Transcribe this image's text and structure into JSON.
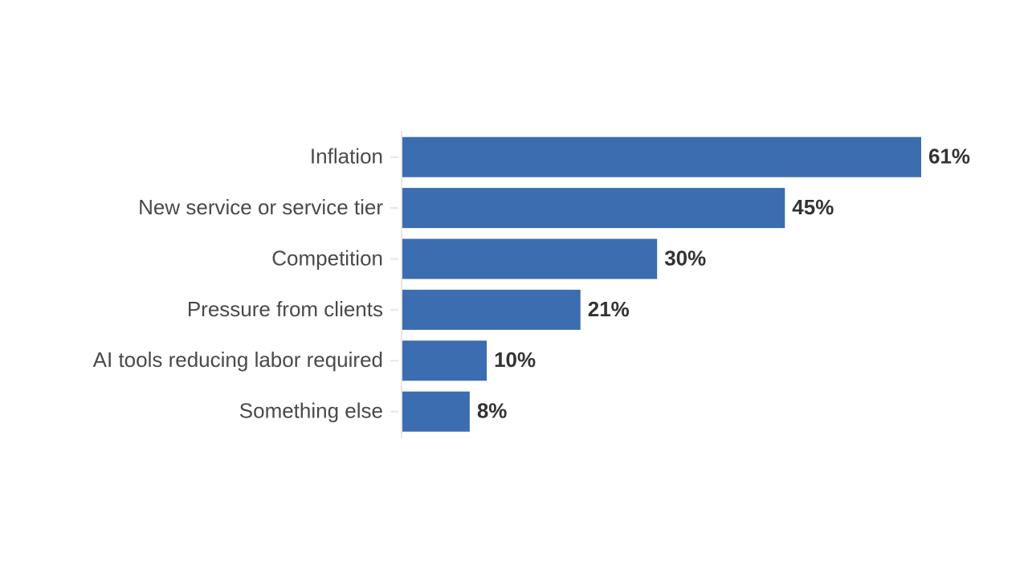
{
  "chart_data": {
    "type": "barh",
    "categories": [
      "Inflation",
      "New service or service tier",
      "Competition",
      "Pressure from clients",
      "AI tools reducing labor required",
      "Something else"
    ],
    "values": [
      61,
      45,
      30,
      21,
      10,
      8
    ],
    "value_labels": [
      "61%",
      "45%",
      "30%",
      "21%",
      "10%",
      "8%"
    ],
    "color": "#3c6db0"
  }
}
